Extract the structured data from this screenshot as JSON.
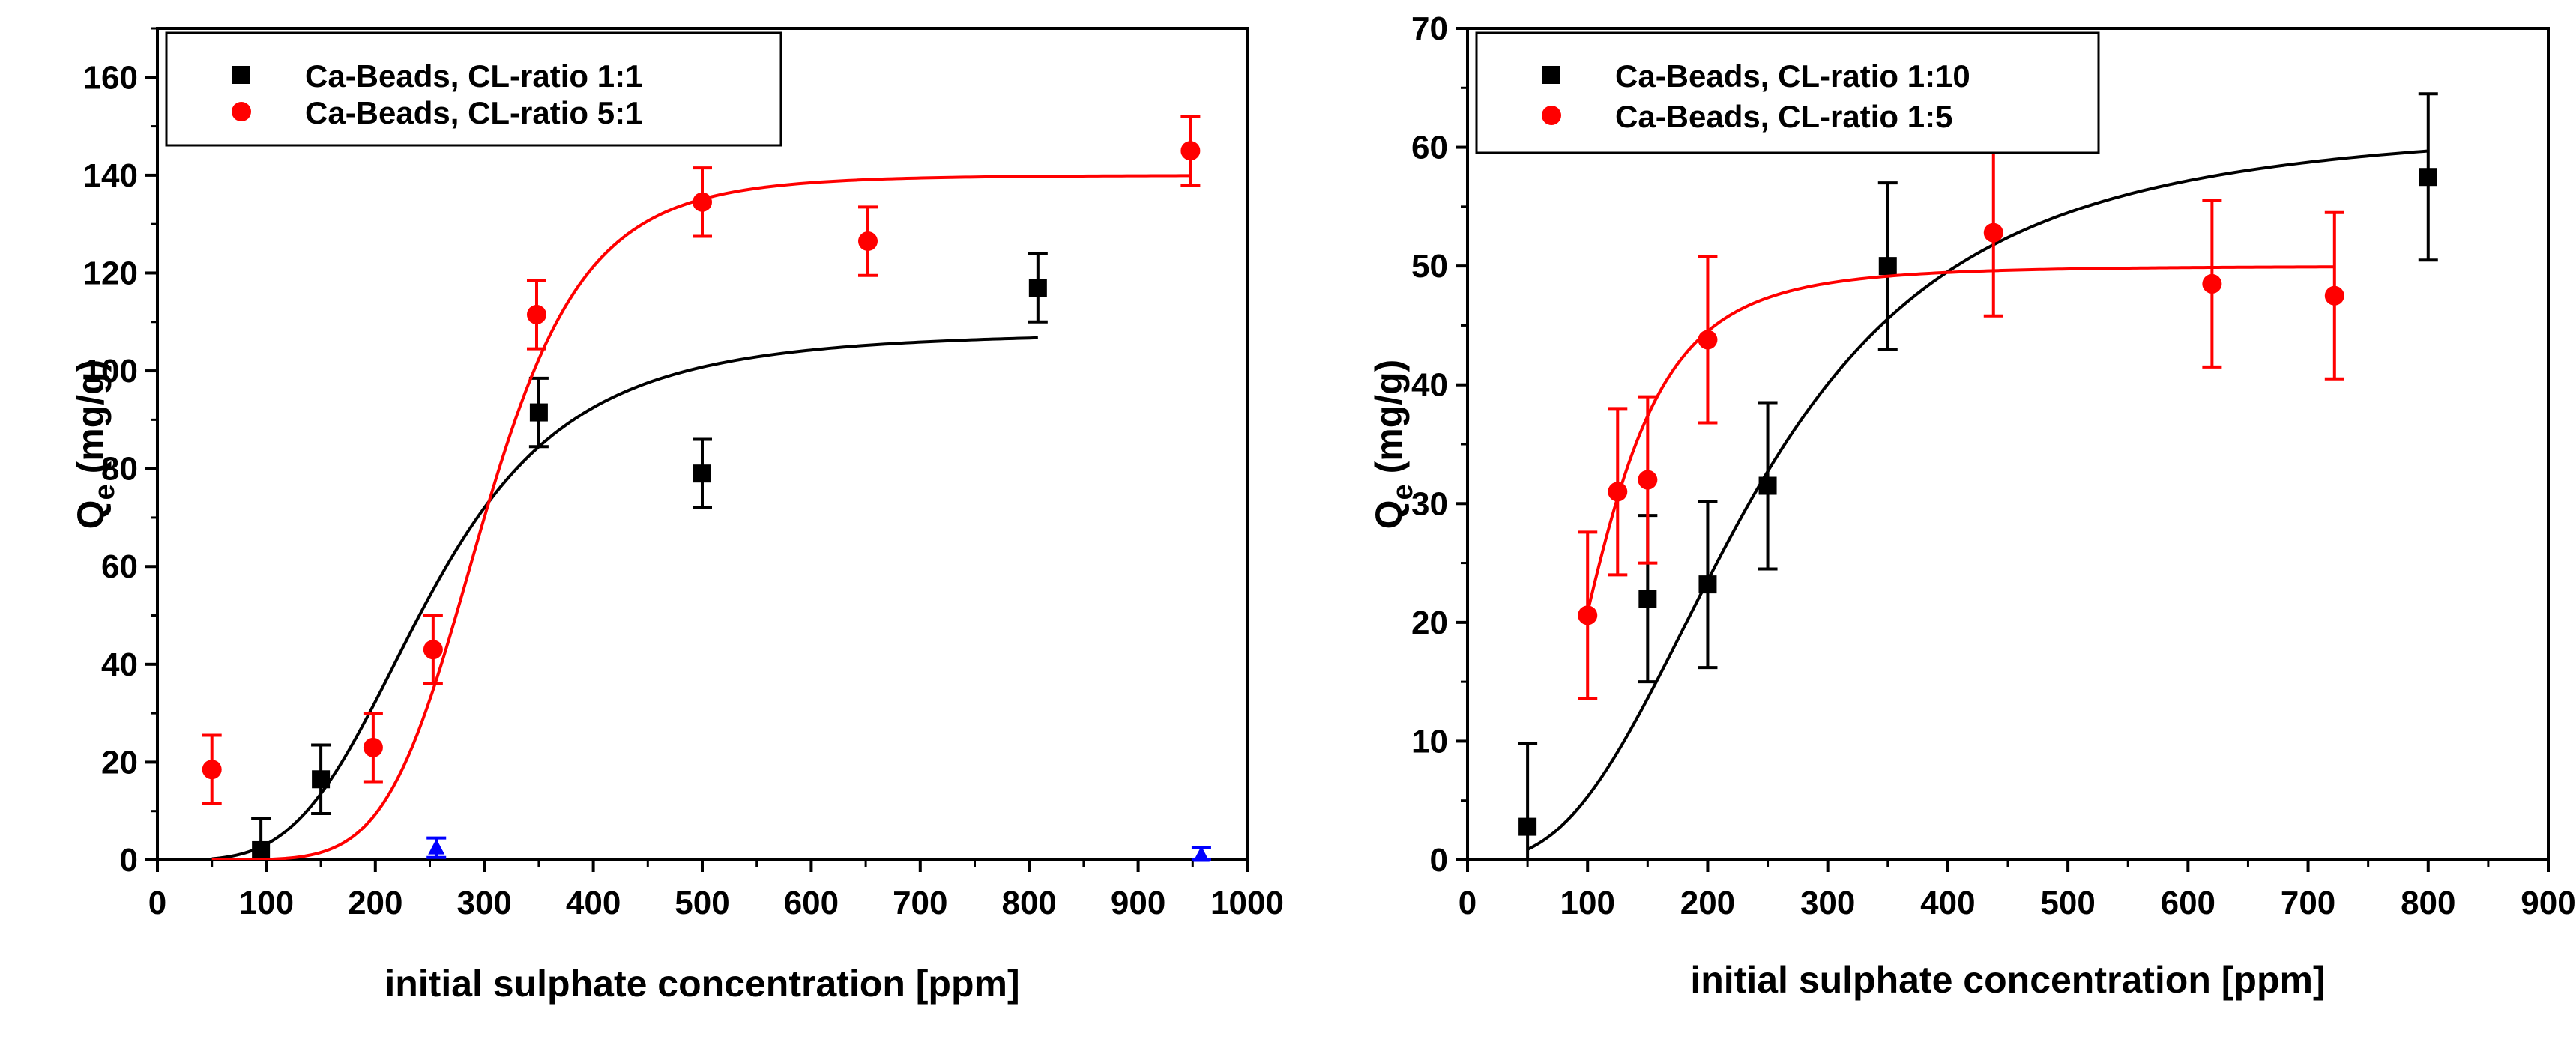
{
  "chart_data": [
    {
      "type": "scatter",
      "title": "",
      "xlabel": "initial sulphate concentration [ppm]",
      "ylabel": "Q",
      "ylabel_sub": "e",
      "ylabel_unit": " (mg/g)",
      "xlim": [
        0,
        1000
      ],
      "ylim": [
        0,
        170
      ],
      "xticks": [
        0,
        100,
        200,
        300,
        400,
        500,
        600,
        700,
        800,
        900,
        1000
      ],
      "yticks": [
        0,
        20,
        40,
        60,
        80,
        100,
        120,
        140,
        160
      ],
      "grid": false,
      "legend_position": "top-left",
      "series": [
        {
          "name": "Ca-Beads, CL-ratio 1:1",
          "color": "#000000",
          "marker": "square",
          "x": [
            95,
            150,
            350,
            500,
            808
          ],
          "y": [
            2,
            16.5,
            91.5,
            79,
            117
          ],
          "err": [
            6.5,
            7,
            7,
            7,
            7
          ],
          "fit": {
            "model": "hill",
            "qmax": 108,
            "k": 250,
            "n": 3.8,
            "xrange": [
              50,
              808
            ]
          }
        },
        {
          "name": "Ca-Beads, CL-ratio 5:1",
          "color": "#ff0000",
          "marker": "circle",
          "x": [
            50,
            198,
            253,
            348,
            500,
            652,
            948
          ],
          "y": [
            18.5,
            23,
            43,
            111.5,
            134.5,
            126.5,
            145
          ],
          "err": [
            7,
            7,
            7,
            7,
            7,
            7,
            7
          ],
          "fit": {
            "model": "hill",
            "qmax": 140,
            "k": 300,
            "n": 6.5,
            "xrange": [
              50,
              948
            ]
          }
        },
        {
          "name": "",
          "color": "#0000ff",
          "marker": "triangle",
          "legend": false,
          "x": [
            256,
            958
          ],
          "y": [
            2.5,
            1
          ],
          "err": [
            2,
            1.5
          ]
        }
      ]
    },
    {
      "type": "scatter",
      "title": "",
      "xlabel": "initial sulphate concentration [ppm]",
      "ylabel": "Q",
      "ylabel_sub": "e",
      "ylabel_unit": " (mg/g)",
      "xlim": [
        0,
        900
      ],
      "ylim": [
        0,
        70
      ],
      "xticks": [
        0,
        100,
        200,
        300,
        400,
        500,
        600,
        700,
        800,
        900
      ],
      "yticks": [
        0,
        10,
        20,
        30,
        40,
        50,
        60,
        70
      ],
      "grid": false,
      "legend_position": "top-left",
      "series": [
        {
          "name": "Ca-Beads, CL-ratio 1:10",
          "color": "#000000",
          "marker": "square",
          "x": [
            50,
            150,
            200,
            250,
            350,
            800
          ],
          "y": [
            2.8,
            22,
            23.2,
            31.5,
            50,
            57.5
          ],
          "err": [
            7,
            7,
            7,
            7,
            7,
            7
          ],
          "fit": {
            "model": "hill",
            "qmax": 62,
            "k": 240,
            "n": 2.7,
            "xrange": [
              50,
              800
            ]
          }
        },
        {
          "name": "Ca-Beads, CL-ratio 1:5",
          "color": "#ff0000",
          "marker": "circle",
          "x": [
            100,
            125,
            150,
            200,
            438,
            620,
            722
          ],
          "y": [
            20.6,
            31,
            32,
            43.8,
            52.8,
            48.5,
            47.5
          ],
          "err": [
            7,
            7,
            7,
            7,
            7,
            7,
            7
          ],
          "fit": {
            "model": "hill",
            "qmax": 50,
            "k": 110,
            "n": 3.5,
            "xrange": [
              100,
              722
            ]
          }
        }
      ]
    }
  ]
}
